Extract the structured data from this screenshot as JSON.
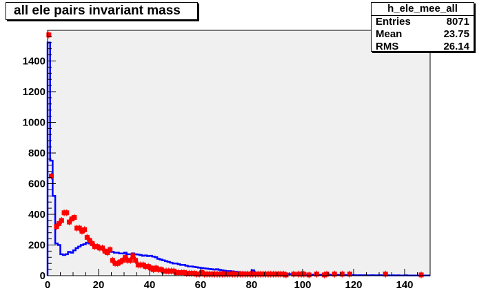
{
  "title": "all ele pairs invariant mass",
  "stats": {
    "name": "h_ele_mee_all",
    "rows": [
      {
        "label": "Entries",
        "value": "8071"
      },
      {
        "label": "Mean",
        "value": "23.75"
      },
      {
        "label": "RMS",
        "value": "26.14"
      }
    ]
  },
  "colors": {
    "frame_bg": "#f0f0f0",
    "hist_line": "#0000ff",
    "markers": "#ff0000",
    "axis": "#000000"
  },
  "chart_data": {
    "type": "line",
    "title": "all ele pairs invariant mass",
    "xlabel": "",
    "ylabel": "",
    "xlim": [
      0,
      150
    ],
    "ylim": [
      0,
      1600
    ],
    "x_ticks": [
      0,
      20,
      40,
      60,
      80,
      100,
      120,
      140
    ],
    "y_ticks": [
      0,
      200,
      400,
      600,
      800,
      1000,
      1200,
      1400
    ],
    "grid": false,
    "legend": "none",
    "series": [
      {
        "style": "step",
        "x": [
          0,
          1,
          2,
          3,
          4,
          5,
          6,
          7,
          8,
          9,
          10,
          11,
          12,
          13,
          14,
          15,
          16,
          17,
          18,
          19,
          20,
          21,
          22,
          23,
          24,
          25,
          26,
          27,
          28,
          29,
          30,
          31,
          32,
          33,
          34,
          35,
          36,
          37,
          38,
          39,
          40,
          41,
          42,
          43,
          44,
          45,
          46,
          47,
          48,
          49,
          50,
          51,
          52,
          53,
          54,
          55,
          56,
          57,
          58,
          59,
          60,
          61,
          62,
          63,
          64,
          65,
          66,
          67,
          68,
          69,
          70,
          71,
          72,
          73,
          74,
          75,
          76,
          77,
          78,
          79,
          80,
          81,
          82,
          83,
          84,
          85,
          86,
          87,
          88,
          89,
          90,
          91,
          92,
          93,
          94,
          95,
          96,
          97,
          98,
          99,
          100,
          101,
          102,
          103,
          104,
          105,
          106,
          107,
          108,
          109,
          110,
          111,
          112,
          113,
          114,
          115,
          116,
          117,
          118,
          119,
          120,
          121,
          122,
          123,
          124,
          125,
          126,
          127,
          128,
          129,
          130,
          131,
          132,
          133,
          134,
          135,
          136,
          137,
          138,
          139,
          140,
          141,
          142,
          143,
          144,
          145,
          146,
          147,
          148,
          149
        ],
        "values": [
          1520,
          750,
          520,
          210,
          200,
          140,
          135,
          140,
          155,
          150,
          165,
          180,
          190,
          200,
          205,
          215,
          210,
          200,
          195,
          190,
          185,
          175,
          170,
          165,
          160,
          155,
          150,
          150,
          145,
          145,
          150,
          140,
          140,
          145,
          140,
          138,
          135,
          130,
          132,
          128,
          130,
          125,
          120,
          110,
          105,
          100,
          95,
          90,
          85,
          80,
          80,
          75,
          70,
          70,
          65,
          60,
          60,
          58,
          55,
          52,
          50,
          48,
          46,
          44,
          42,
          40,
          42,
          38,
          35,
          32,
          30,
          30,
          28,
          26,
          24,
          22,
          22,
          20,
          20,
          18,
          35,
          20,
          18,
          16,
          15,
          18,
          14,
          14,
          13,
          12,
          12,
          11,
          12,
          10,
          10,
          10,
          9,
          10,
          8,
          8,
          12,
          7,
          8,
          6,
          7,
          6,
          5,
          6,
          5,
          5,
          6,
          4,
          4,
          5,
          4,
          3,
          4,
          3,
          3,
          4,
          3,
          2,
          3,
          2,
          3,
          2,
          2,
          3,
          2,
          2,
          3,
          2,
          2,
          2,
          1,
          2,
          1,
          2,
          1,
          1,
          2,
          1,
          1,
          1,
          1,
          1,
          1,
          1,
          1,
          1
        ]
      },
      {
        "style": "markers",
        "x": [
          0.5,
          1.5,
          3.5,
          4.5,
          5.5,
          6.5,
          7.5,
          8.5,
          9.5,
          10.5,
          11.5,
          12.5,
          13.5,
          14.5,
          15.5,
          16.5,
          17.5,
          18.5,
          19.5,
          20.5,
          21.5,
          22.5,
          23.5,
          24.5,
          25.5,
          26.5,
          27.5,
          28.5,
          29.5,
          30.5,
          31.5,
          32.5,
          33.5,
          34.5,
          35.5,
          36.5,
          37.5,
          38.5,
          39.5,
          40.5,
          41.5,
          42.5,
          43.5,
          44.5,
          45.5,
          46.5,
          47.5,
          48.5,
          49.5,
          50.5,
          51.5,
          52.5,
          53.5,
          54.5,
          55.5,
          56.5,
          57.5,
          58.5,
          59.5,
          60.5,
          61.5,
          62.5,
          63.5,
          64.5,
          65.5,
          66.5,
          67.5,
          68.5,
          69.5,
          70.5,
          71.5,
          72.5,
          73.5,
          74.5,
          75.5,
          76.5,
          77.5,
          78.5,
          79.5,
          80.5,
          81.5,
          82.5,
          83.5,
          84.5,
          85.5,
          86.5,
          87.5,
          88.5,
          89.5,
          90.5,
          91.5,
          92.5,
          93.5,
          96.5,
          98.5,
          99.5,
          100.5,
          102.5,
          105.5,
          108.5,
          109.5,
          112.5,
          115.5,
          118.5,
          132.5,
          146.5
        ],
        "values": [
          1570,
          650,
          320,
          340,
          360,
          410,
          410,
          350,
          370,
          380,
          310,
          310,
          290,
          300,
          250,
          230,
          210,
          190,
          190,
          180,
          180,
          160,
          150,
          170,
          100,
          80,
          80,
          90,
          100,
          120,
          100,
          100,
          130,
          100,
          70,
          70,
          70,
          60,
          60,
          50,
          40,
          50,
          40,
          40,
          30,
          30,
          30,
          30,
          30,
          20,
          20,
          20,
          20,
          15,
          15,
          15,
          15,
          10,
          10,
          20,
          10,
          10,
          10,
          10,
          10,
          10,
          10,
          10,
          10,
          10,
          10,
          10,
          10,
          10,
          10,
          10,
          10,
          10,
          10,
          10,
          10,
          10,
          10,
          10,
          10,
          10,
          10,
          10,
          10,
          10,
          10,
          10,
          5,
          10,
          10,
          10,
          10,
          5,
          10,
          5,
          10,
          10,
          10,
          10,
          10,
          5
        ]
      }
    ]
  }
}
